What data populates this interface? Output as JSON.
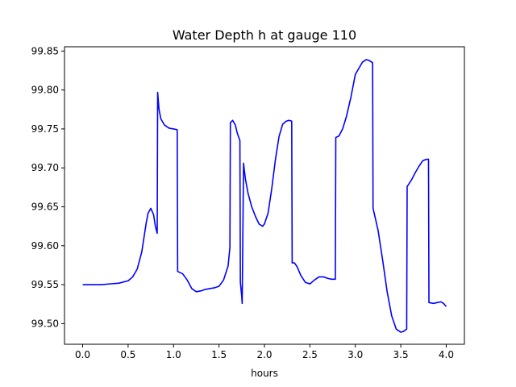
{
  "chart_data": {
    "type": "line",
    "title": "Water Depth h at gauge 110",
    "xlabel": "hours",
    "ylabel": "",
    "xlim": [
      -0.2,
      4.2
    ],
    "ylim": [
      99.4735,
      99.8555
    ],
    "xticks": [
      0.0,
      0.5,
      1.0,
      1.5,
      2.0,
      2.5,
      3.0,
      3.5,
      4.0
    ],
    "xtick_labels": [
      "0.0",
      "0.5",
      "1.0",
      "1.5",
      "2.0",
      "2.5",
      "3.0",
      "3.5",
      "4.0"
    ],
    "yticks": [
      99.5,
      99.55,
      99.6,
      99.65,
      99.7,
      99.75,
      99.8,
      99.85
    ],
    "ytick_labels": [
      "99.50",
      "99.55",
      "99.60",
      "99.65",
      "99.70",
      "99.75",
      "99.80",
      "99.85"
    ],
    "grid": false,
    "legend": "none",
    "series": [
      {
        "color": "#0000ff",
        "x": [
          0.0,
          0.1,
          0.2,
          0.3,
          0.4,
          0.5,
          0.55,
          0.6,
          0.65,
          0.7,
          0.72,
          0.75,
          0.78,
          0.8,
          0.82,
          0.825,
          0.84,
          0.86,
          0.9,
          0.95,
          1.0,
          1.04,
          1.045,
          1.1,
          1.15,
          1.2,
          1.25,
          1.3,
          1.35,
          1.4,
          1.45,
          1.5,
          1.55,
          1.6,
          1.62,
          1.625,
          1.65,
          1.68,
          1.7,
          1.73,
          1.735,
          1.75,
          1.755,
          1.77,
          1.79,
          1.82,
          1.86,
          1.9,
          1.94,
          1.98,
          2.0,
          2.04,
          2.08,
          2.12,
          2.16,
          2.2,
          2.24,
          2.27,
          2.3,
          2.305,
          2.33,
          2.36,
          2.4,
          2.45,
          2.5,
          2.55,
          2.6,
          2.65,
          2.7,
          2.74,
          2.78,
          2.785,
          2.82,
          2.86,
          2.9,
          2.95,
          3.0,
          3.05,
          3.08,
          3.12,
          3.15,
          3.19,
          3.195,
          3.25,
          3.3,
          3.35,
          3.4,
          3.45,
          3.5,
          3.53,
          3.565,
          3.57,
          3.62,
          3.66,
          3.7,
          3.74,
          3.78,
          3.805,
          3.81,
          3.86,
          3.9,
          3.94,
          3.97,
          4.0
        ],
        "y": [
          99.55,
          99.55,
          99.55,
          99.551,
          99.552,
          99.555,
          99.56,
          99.57,
          99.592,
          99.63,
          99.642,
          99.648,
          99.64,
          99.625,
          99.616,
          99.797,
          99.775,
          99.763,
          99.755,
          99.751,
          99.75,
          99.749,
          99.567,
          99.564,
          99.556,
          99.545,
          99.541,
          99.542,
          99.544,
          99.545,
          99.546,
          99.548,
          99.556,
          99.574,
          99.598,
          99.758,
          99.761,
          99.755,
          99.745,
          99.735,
          99.553,
          99.535,
          99.526,
          99.706,
          99.686,
          99.667,
          99.65,
          99.638,
          99.628,
          99.625,
          99.628,
          99.642,
          99.673,
          99.71,
          99.74,
          99.756,
          99.76,
          99.761,
          99.76,
          99.578,
          99.578,
          99.573,
          99.562,
          99.553,
          99.551,
          99.556,
          99.56,
          99.56,
          99.558,
          99.557,
          99.557,
          99.739,
          99.741,
          99.75,
          99.765,
          99.79,
          99.82,
          99.83,
          99.836,
          99.839,
          99.838,
          99.835,
          99.648,
          99.62,
          99.582,
          99.541,
          99.51,
          99.493,
          99.489,
          99.49,
          99.493,
          99.676,
          99.685,
          99.694,
          99.702,
          99.709,
          99.711,
          99.711,
          99.527,
          99.526,
          99.527,
          99.528,
          99.526,
          99.522
        ]
      }
    ]
  }
}
